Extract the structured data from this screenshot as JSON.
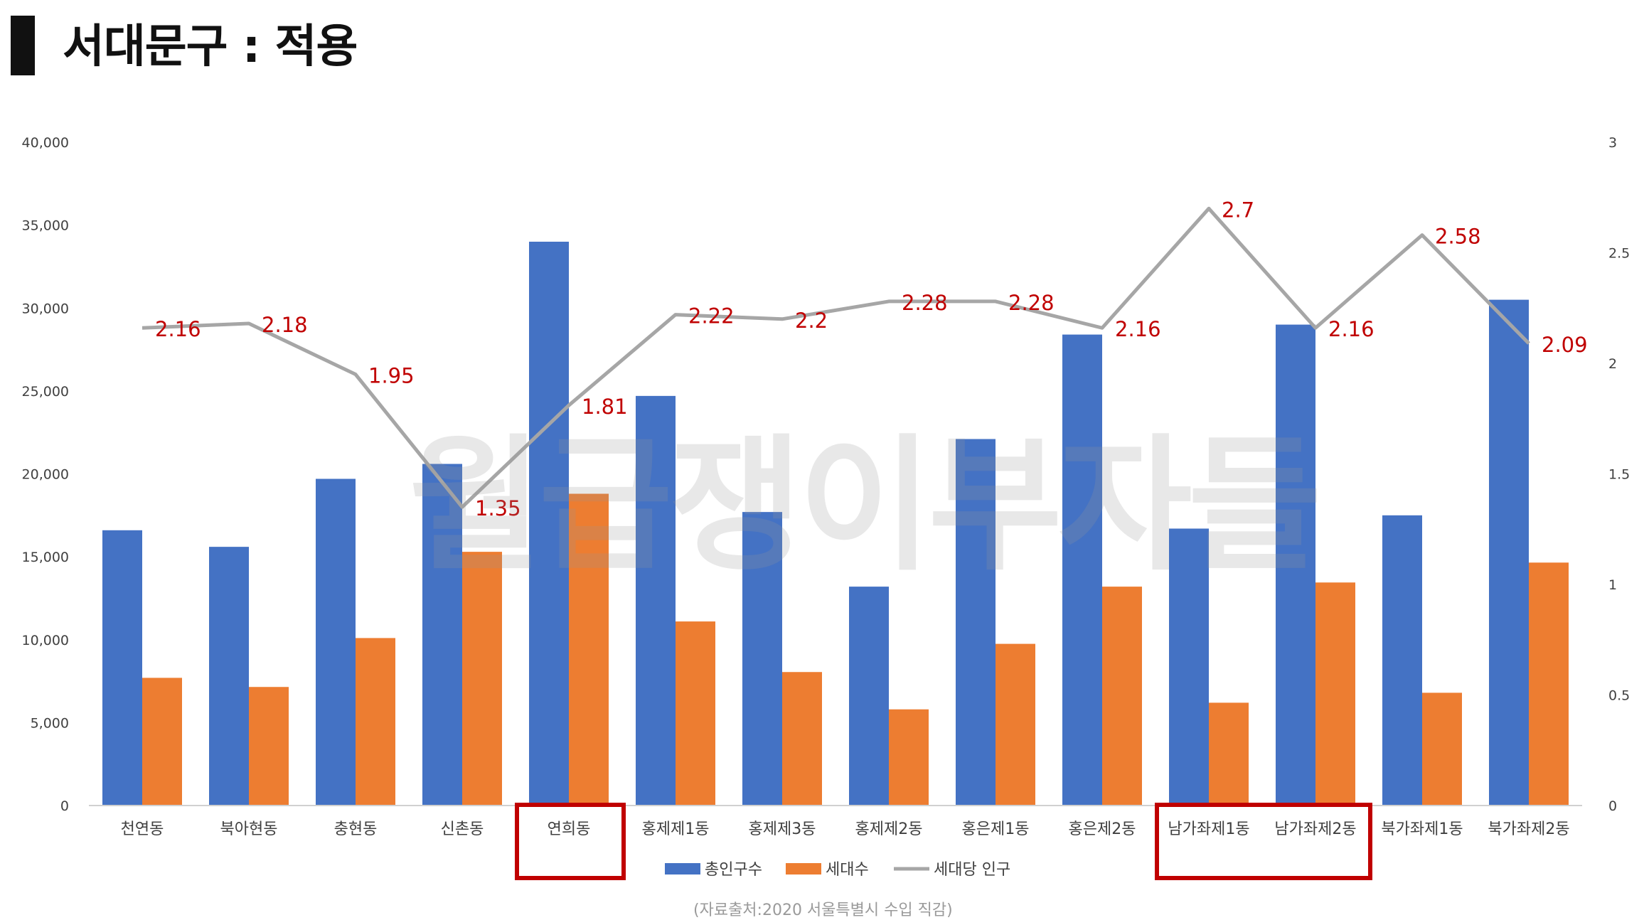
{
  "page": {
    "title": "서대문구 : 적용"
  },
  "watermark": "월급쟁이부자들",
  "source_note": "(자료출처:2020 서울특별시 수입 직감)",
  "colors": {
    "total_population": "#4472C4",
    "households": "#ED7D31",
    "per_household": "#A6A6A6",
    "data_label": "#C00000",
    "highlight_box": "#C00000",
    "axis_text": "#404040"
  },
  "chart_data": {
    "type": "bar",
    "title": "",
    "categories": [
      "천연동",
      "북아현동",
      "충현동",
      "신촌동",
      "연희동",
      "홍제제1동",
      "홍제제3동",
      "홍제제2동",
      "홍은제1동",
      "홍은제2동",
      "남가좌제1동",
      "남가좌제2동",
      "북가좌제1동",
      "북가좌제2동"
    ],
    "series": [
      {
        "name": "총인구수",
        "type": "bar",
        "axis": "left",
        "values": [
          16600,
          15600,
          19700,
          20600,
          34000,
          24700,
          17700,
          13200,
          22100,
          28400,
          16700,
          29000,
          17500,
          30500
        ]
      },
      {
        "name": "세대수",
        "type": "bar",
        "axis": "left",
        "values": [
          7700,
          7150,
          10100,
          15300,
          18800,
          11100,
          8050,
          5800,
          9750,
          13200,
          6200,
          13450,
          6800,
          14650
        ]
      },
      {
        "name": "세대당 인구",
        "type": "line",
        "axis": "right",
        "values": [
          2.16,
          2.18,
          1.95,
          1.35,
          1.81,
          2.22,
          2.2,
          2.28,
          2.28,
          2.16,
          2.7,
          2.16,
          2.58,
          2.09
        ],
        "labels": [
          "2.16",
          "2.18",
          "1.95",
          "1.35",
          "1.81",
          "2.22",
          "2.2",
          "2.28",
          "2.28",
          "2.16",
          "2.7",
          "2.16",
          "2.58",
          "2.09"
        ]
      }
    ],
    "y_left": {
      "ylim": [
        0,
        40000
      ],
      "ticks": [
        "0",
        "5,000",
        "10,000",
        "15,000",
        "20,000",
        "25,000",
        "30,000",
        "35,000",
        "40,000"
      ]
    },
    "y_right": {
      "ylim": [
        0,
        3
      ],
      "ticks": [
        "0",
        "0.5",
        "1",
        "1.5",
        "2",
        "2.5",
        "3"
      ]
    },
    "legend": {
      "position": "bottom",
      "entries": [
        "총인구수",
        "세대수",
        "세대당 인구"
      ]
    },
    "highlighted_categories": [
      [
        "연희동"
      ],
      [
        "남가좌제1동",
        "남가좌제2동"
      ]
    ],
    "grid": false
  }
}
